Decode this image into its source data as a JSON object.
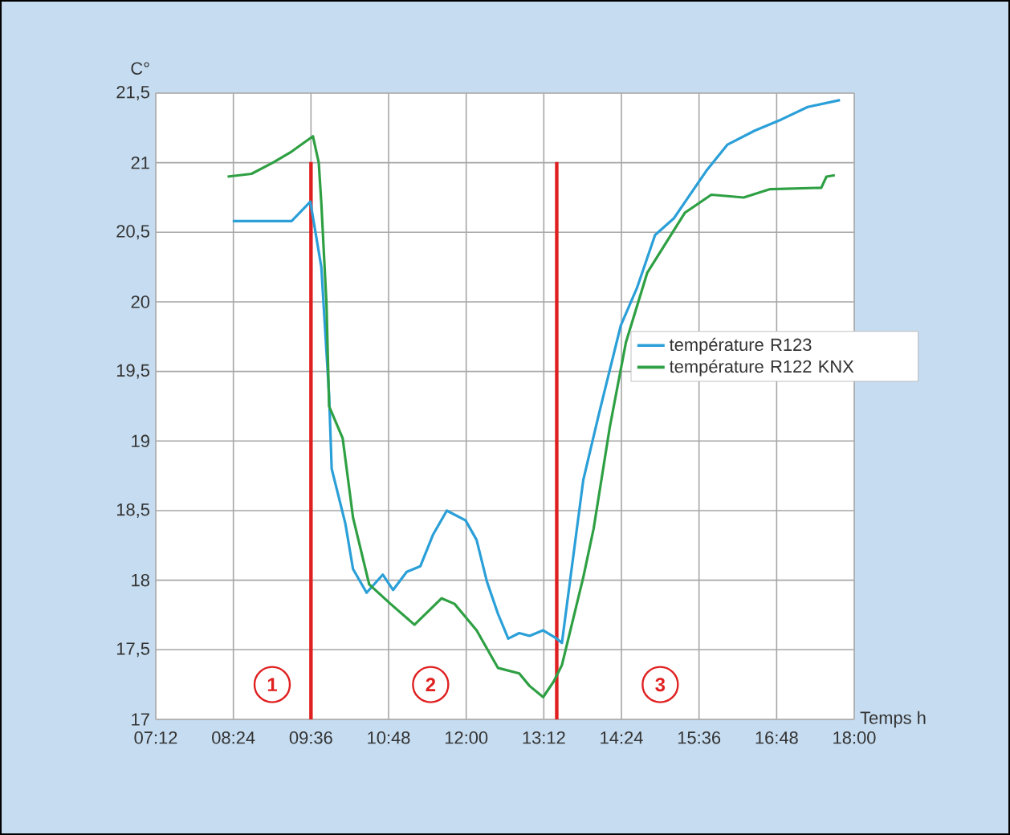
{
  "chart_data": {
    "type": "line",
    "xlabel": "Temps h",
    "ylabel": "C°",
    "xlim": [
      7.2,
      18
    ],
    "xticks": [
      {
        "value": 7.2,
        "label": "07:12"
      },
      {
        "value": 8.4,
        "label": "08:24"
      },
      {
        "value": 9.6,
        "label": "09:36"
      },
      {
        "value": 10.8,
        "label": "10:48"
      },
      {
        "value": 12,
        "label": "12:00"
      },
      {
        "value": 13.2,
        "label": "13:12"
      },
      {
        "value": 14.4,
        "label": "14:24"
      },
      {
        "value": 15.6,
        "label": "15:36"
      },
      {
        "value": 16.8,
        "label": "16:48"
      },
      {
        "value": 18,
        "label": "18:00"
      }
    ],
    "ylim": [
      17,
      21.5
    ],
    "yticks": [
      17,
      {
        "value": 17.5,
        "label": "17,5"
      },
      18,
      {
        "value": 18.5,
        "label": "18,5"
      },
      19,
      {
        "value": 19.5,
        "label": "19,5"
      },
      20,
      {
        "value": 20.5,
        "label": "20,5"
      },
      21,
      {
        "value": 21.5,
        "label": "21,5"
      }
    ],
    "grid": true,
    "legend": "right",
    "marker": "none",
    "line_style": "solid",
    "series": [
      {
        "name": "température R123",
        "color": "#2a9fd8",
        "x": [
          8.39,
          9.3,
          9.59,
          9.76,
          9.88,
          9.92,
          10.13,
          10.25,
          10.46,
          10.71,
          10.87,
          11.08,
          11.29,
          11.49,
          11.7,
          11.99,
          12.16,
          12.32,
          12.49,
          12.65,
          12.82,
          12.98,
          13.19,
          13.4,
          13.48,
          13.81,
          14.06,
          14.39,
          14.64,
          14.92,
          15.21,
          15.71,
          16.04,
          16.46,
          16.87,
          17.28,
          17.78
        ],
        "values": [
          20.58,
          20.58,
          20.72,
          20.25,
          19.33,
          18.8,
          18.41,
          18.08,
          17.91,
          18.04,
          17.93,
          18.06,
          18.1,
          18.33,
          18.5,
          18.43,
          18.29,
          17.99,
          17.76,
          17.58,
          17.62,
          17.6,
          17.64,
          17.58,
          17.55,
          18.72,
          19.21,
          19.83,
          20.1,
          20.48,
          20.6,
          20.94,
          21.13,
          21.23,
          21.31,
          21.4,
          21.45
        ]
      },
      {
        "name": "température R122 KNX",
        "color": "#2ea043",
        "x": [
          8.31,
          8.68,
          9.01,
          9.3,
          9.63,
          9.72,
          9.76,
          9.84,
          9.88,
          10.09,
          10.25,
          10.5,
          10.83,
          11.2,
          11.62,
          11.82,
          12.16,
          12.49,
          12.82,
          12.98,
          13.19,
          13.35,
          13.48,
          13.81,
          13.97,
          14.22,
          14.47,
          14.8,
          15.38,
          15.79,
          16.29,
          16.7,
          17.49,
          17.57,
          17.7
        ],
        "values": [
          20.9,
          20.92,
          21.0,
          21.08,
          21.19,
          21.0,
          20.71,
          19.98,
          19.25,
          19.02,
          18.45,
          17.97,
          17.83,
          17.68,
          17.87,
          17.83,
          17.64,
          17.37,
          17.33,
          17.24,
          17.16,
          17.27,
          17.39,
          18.02,
          18.37,
          19.1,
          19.71,
          20.21,
          20.64,
          20.77,
          20.75,
          20.81,
          20.82,
          20.9,
          20.91
        ]
      }
    ],
    "ref_lines": [
      {
        "axis": "x",
        "value": 9.6,
        "color": "#e02020"
      },
      {
        "axis": "x",
        "value": 13.4,
        "color": "#e02020"
      }
    ],
    "annotations": [
      {
        "text": "1",
        "x": 9.0,
        "y": 17.25
      },
      {
        "text": "2",
        "x": 11.45,
        "y": 17.25
      },
      {
        "text": "3",
        "x": 15.0,
        "y": 17.25
      }
    ]
  }
}
